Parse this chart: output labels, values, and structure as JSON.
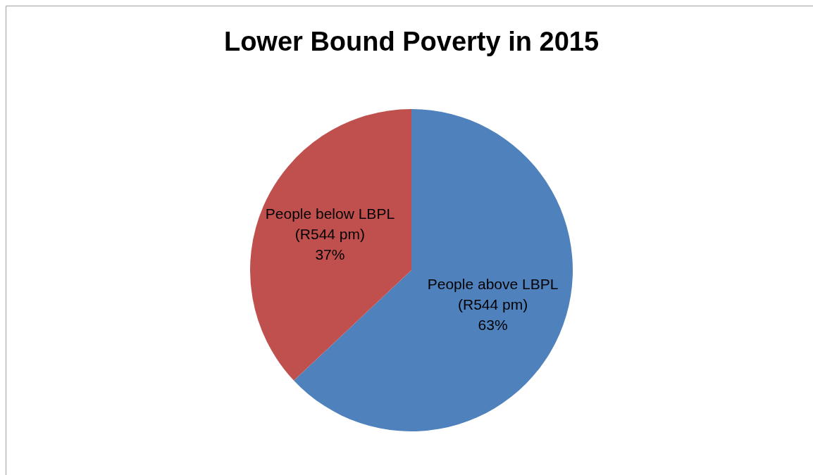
{
  "chart_data": {
    "type": "pie",
    "title": "Lower Bound Poverty in 2015",
    "categories": [
      "People above LBPL (R544 pm)",
      "People below LBPL (R544 pm)"
    ],
    "values": [
      63,
      37
    ],
    "colors": [
      "#4f81bd",
      "#c0504d"
    ],
    "value_labels": [
      "63%",
      "37%"
    ]
  }
}
